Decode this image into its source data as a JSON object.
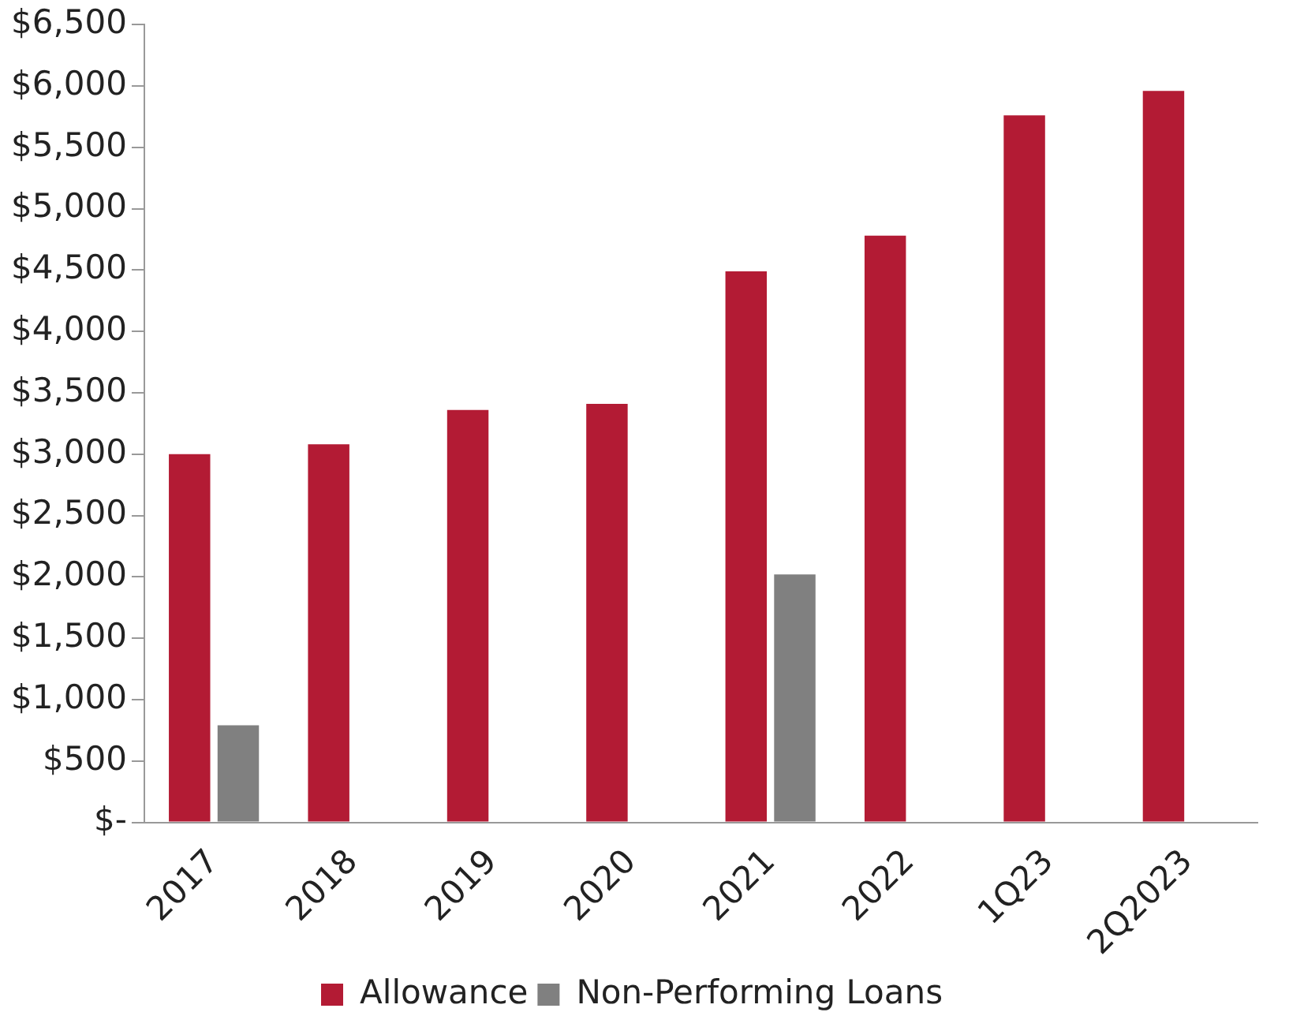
{
  "chart_data": {
    "type": "bar",
    "categories": [
      "2017",
      "2018",
      "2019",
      "2020",
      "2021",
      "2022",
      "1Q23",
      "2Q2023"
    ],
    "series": [
      {
        "name": "Allowance",
        "color": "#b31b34",
        "values": [
          3000,
          3080,
          3360,
          3410,
          4490,
          4780,
          5760,
          5960
        ]
      },
      {
        "name": "Non-Performing Loans",
        "color": "#808080",
        "values": [
          790,
          null,
          null,
          null,
          2020,
          null,
          null,
          null
        ]
      }
    ],
    "ylim": [
      0,
      6500
    ],
    "yticks": [
      {
        "value": 0,
        "label": "$-"
      },
      {
        "value": 500,
        "label": "$500"
      },
      {
        "value": 1000,
        "label": "$1,000"
      },
      {
        "value": 1500,
        "label": "$1,500"
      },
      {
        "value": 2000,
        "label": "$2,000"
      },
      {
        "value": 2500,
        "label": "$2,500"
      },
      {
        "value": 3000,
        "label": "$3,000"
      },
      {
        "value": 3500,
        "label": "$3,500"
      },
      {
        "value": 4000,
        "label": "$4,000"
      },
      {
        "value": 4500,
        "label": "$4,500"
      },
      {
        "value": 5000,
        "label": "$5,000"
      },
      {
        "value": 5500,
        "label": "$5,500"
      },
      {
        "value": 6000,
        "label": "$6,000"
      },
      {
        "value": 6500,
        "label": "$6,500"
      }
    ],
    "grid": false,
    "legend": "bottom"
  }
}
